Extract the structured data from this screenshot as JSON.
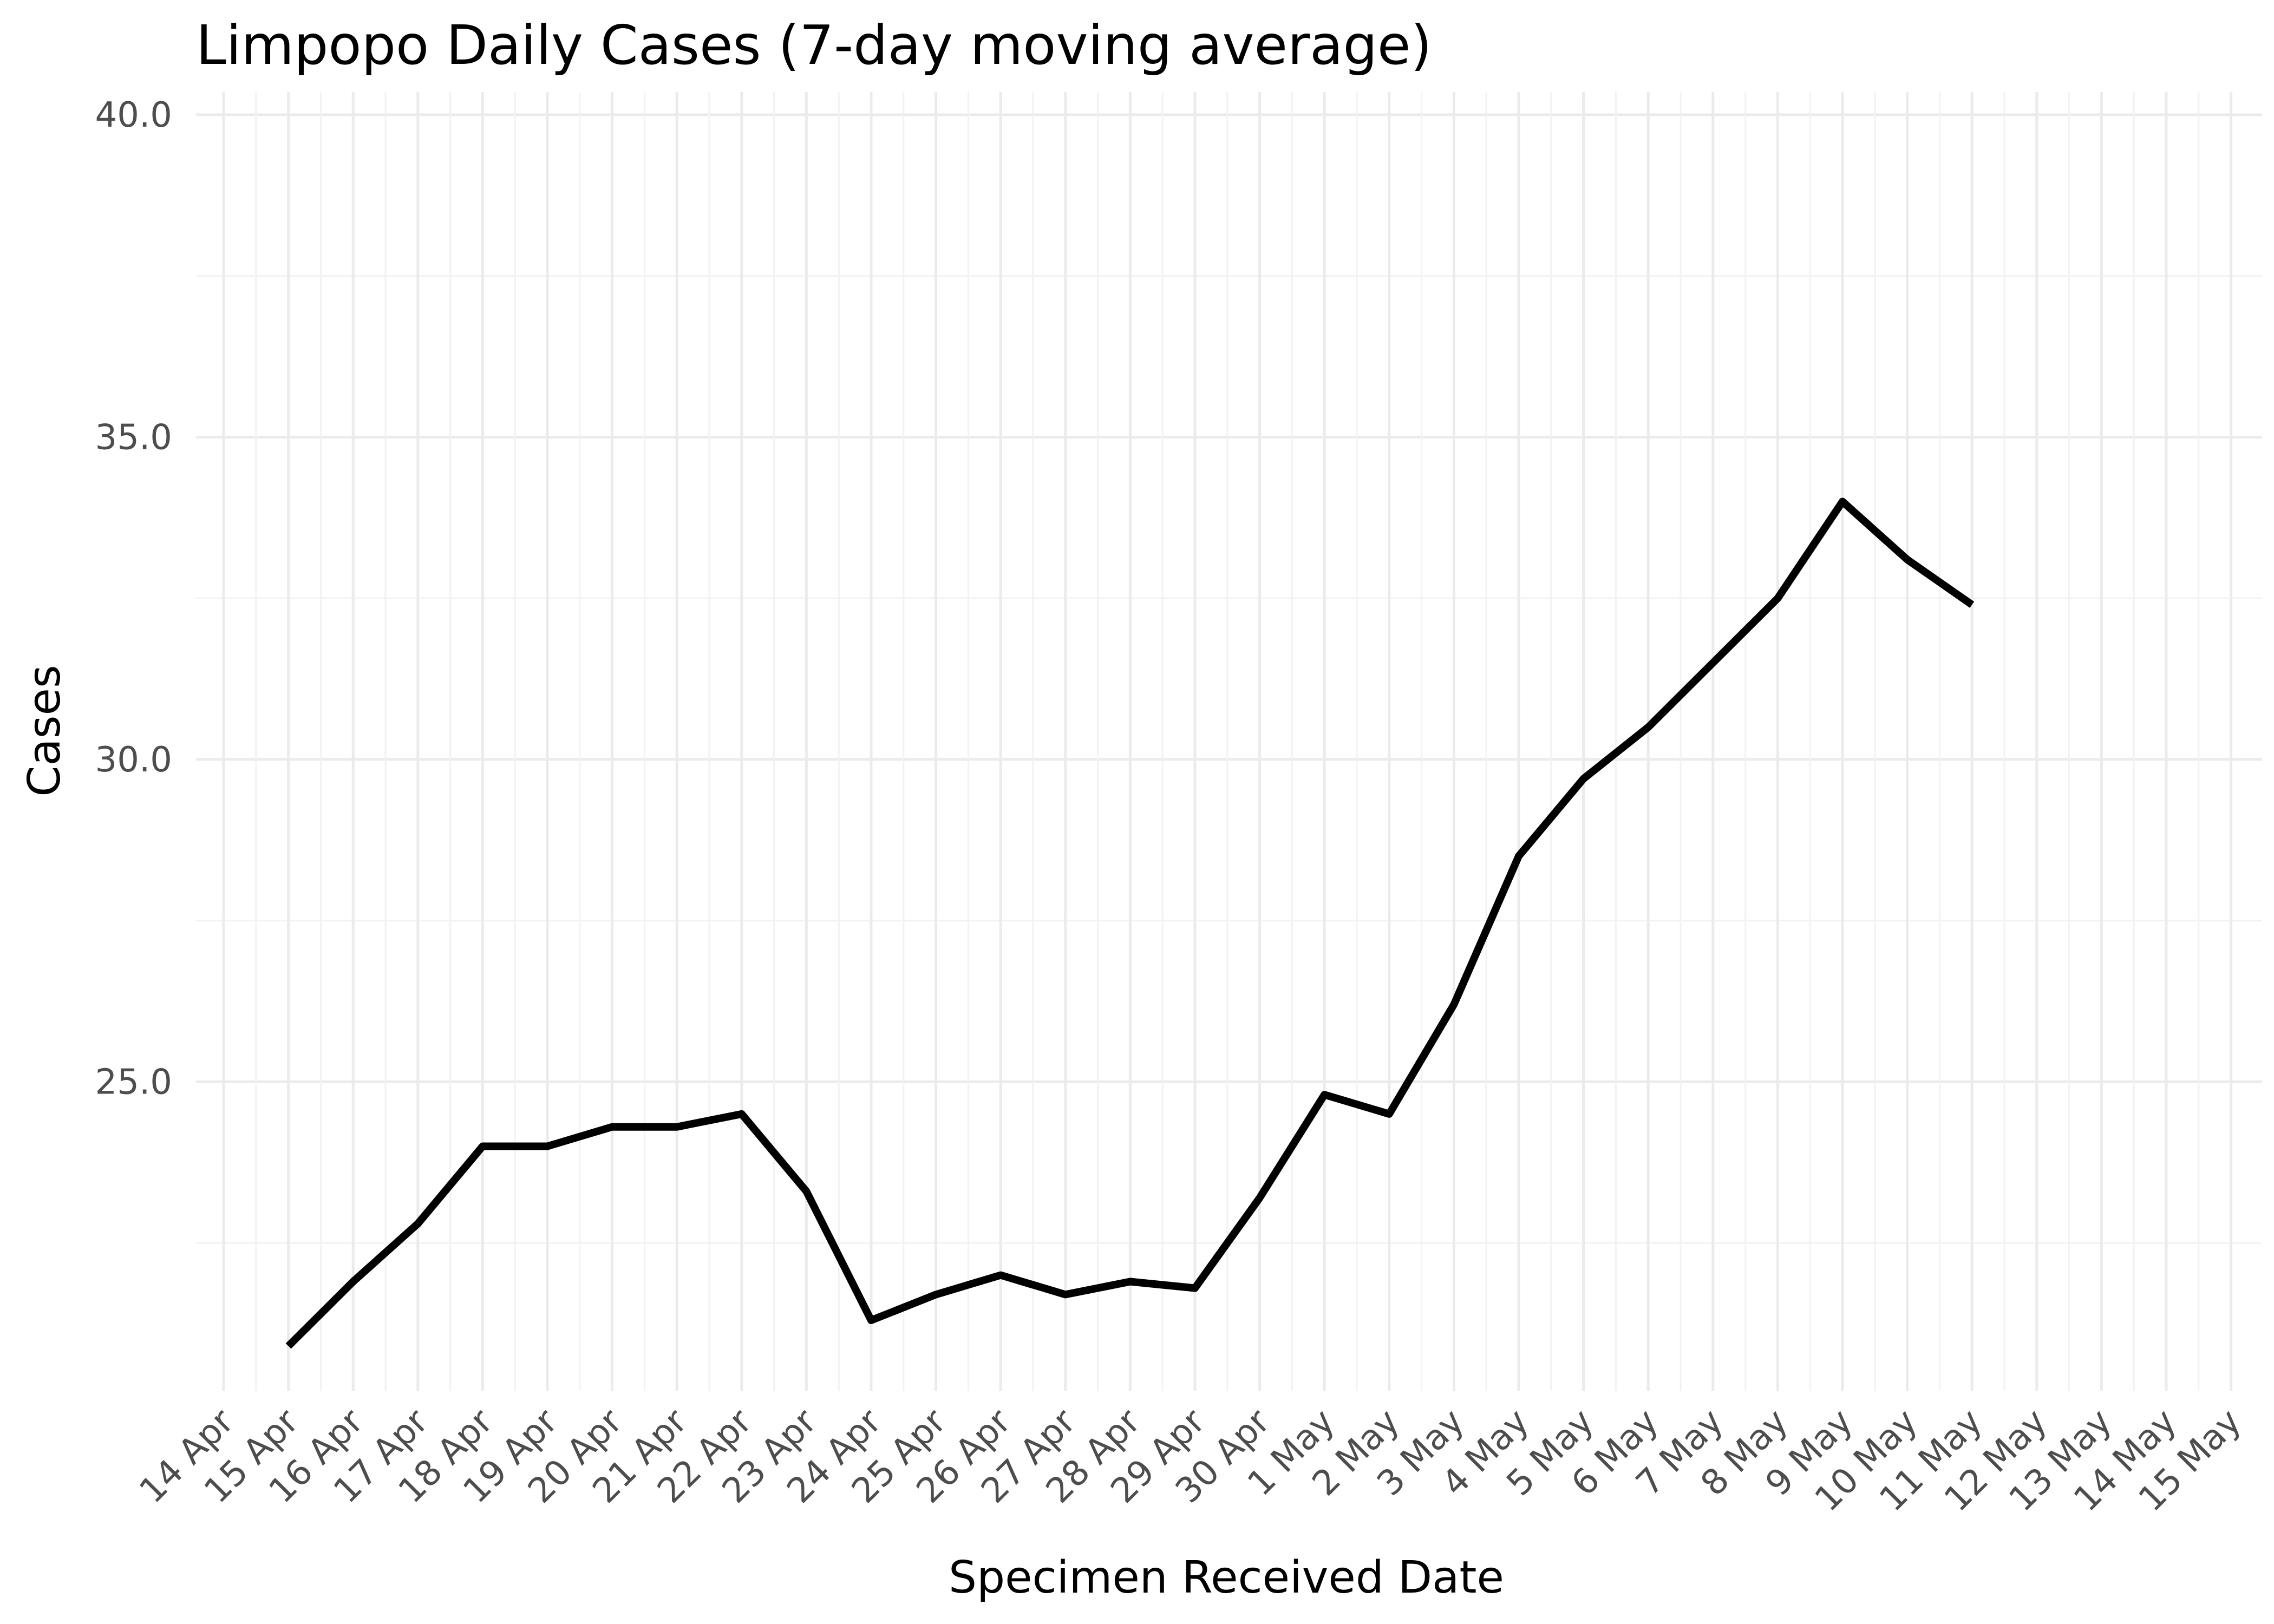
{
  "chart_data": {
    "type": "line",
    "title": "Limpopo Daily Cases (7-day moving average)",
    "xlabel": "Specimen Received Date",
    "ylabel": "Cases",
    "x_tick_labels": [
      "14 Apr",
      "15 Apr",
      "16 Apr",
      "17 Apr",
      "18 Apr",
      "19 Apr",
      "20 Apr",
      "21 Apr",
      "22 Apr",
      "23 Apr",
      "24 Apr",
      "25 Apr",
      "26 Apr",
      "27 Apr",
      "28 Apr",
      "29 Apr",
      "30 Apr",
      "1 May",
      "2 May",
      "3 May",
      "4 May",
      "5 May",
      "6 May",
      "7 May",
      "8 May",
      "9 May",
      "10 May",
      "11 May",
      "12 May",
      "13 May",
      "14 May",
      "15 May"
    ],
    "y_ticks": [
      25.0,
      30.0,
      35.0,
      40.0
    ],
    "y_tick_labels": [
      "25.0",
      "30.0",
      "35.0",
      "40.0"
    ],
    "xlim": [
      "14 Apr",
      "15 May"
    ],
    "ylim": [
      20.2,
      40.0
    ],
    "grid": true,
    "legend": "none",
    "line_color": "#000000",
    "x": [
      "15 Apr",
      "16 Apr",
      "17 Apr",
      "18 Apr",
      "19 Apr",
      "20 Apr",
      "21 Apr",
      "22 Apr",
      "23 Apr",
      "24 Apr",
      "25 Apr",
      "26 Apr",
      "27 Apr",
      "28 Apr",
      "29 Apr",
      "30 Apr",
      "1 May",
      "2 May",
      "3 May",
      "4 May",
      "5 May",
      "6 May",
      "7 May",
      "8 May",
      "9 May",
      "10 May",
      "11 May"
    ],
    "values": [
      20.9,
      21.9,
      22.8,
      24.0,
      24.0,
      24.3,
      24.3,
      24.5,
      23.3,
      21.3,
      21.7,
      22.0,
      21.7,
      21.9,
      21.8,
      23.2,
      24.8,
      24.5,
      26.2,
      28.5,
      29.7,
      30.5,
      31.5,
      32.5,
      34.0,
      33.1,
      32.4
    ]
  }
}
